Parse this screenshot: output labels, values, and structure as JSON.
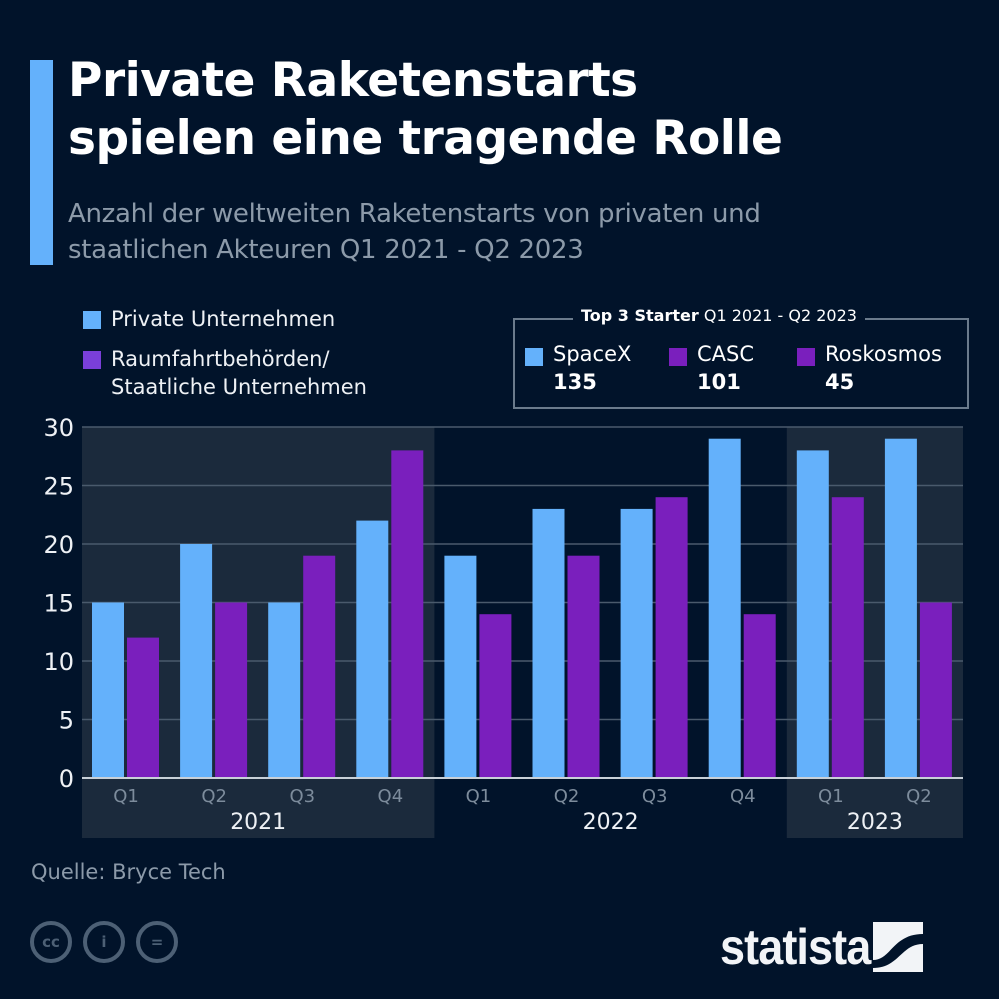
{
  "header": {
    "title_line1": "Private Raketenstarts",
    "title_line2": "spielen eine tragende Rolle",
    "subtitle_line1": "Anzahl der weltweiten Raketenstarts von privaten und",
    "subtitle_line2": "staatlichen Akteuren Q1 2021 - Q2 2023"
  },
  "legend": {
    "items": [
      {
        "label_line1": "Private Unternehmen",
        "label_line2": "",
        "color": "#64b1fb"
      },
      {
        "label_line1": "Raumfahrtbehörden/",
        "label_line2": "Staatliche Unternehmen",
        "color": "#7a1fbd"
      }
    ]
  },
  "top3": {
    "title_bold": "Top 3 Starter",
    "title_rest": "Q1 2021 - Q2 2023",
    "items": [
      {
        "name": "SpaceX",
        "value": "135",
        "color": "#64b1fb"
      },
      {
        "name": "CASC",
        "value": "101",
        "color": "#7a1fbd"
      },
      {
        "name": "Roskosmos",
        "value": "45",
        "color": "#7a1fbd"
      }
    ]
  },
  "footer": {
    "source": "Quelle: Bryce Tech",
    "license_icons": [
      "cc-icon",
      "by-icon",
      "nd-icon"
    ],
    "license_glyphs": [
      "cc",
      "i",
      "="
    ],
    "logo": "statista"
  },
  "colors": {
    "background": "#01132a",
    "band": "#1b2a3c",
    "grid": "#4a5a6c",
    "private": "#64b1fb",
    "state": "#7a1fbd",
    "axis_text": "#eef1f5",
    "quarter_text": "#7d8c9c"
  },
  "chart_data": {
    "type": "bar",
    "title": "Private Raketenstarts spielen eine tragende Rolle",
    "subtitle": "Anzahl der weltweiten Raketenstarts von privaten und staatlichen Akteuren Q1 2021 - Q2 2023",
    "categories": [
      "Q1",
      "Q2",
      "Q3",
      "Q4",
      "Q1",
      "Q2",
      "Q3",
      "Q4",
      "Q1",
      "Q2"
    ],
    "groups": [
      {
        "label": "2021",
        "start": 0,
        "count": 4,
        "shaded": true
      },
      {
        "label": "2022",
        "start": 4,
        "count": 4,
        "shaded": false
      },
      {
        "label": "2023",
        "start": 8,
        "count": 2,
        "shaded": true
      }
    ],
    "series": [
      {
        "name": "Private Unternehmen",
        "color": "#64b1fb",
        "values": [
          15,
          20,
          15,
          22,
          19,
          23,
          23,
          29,
          28,
          29
        ]
      },
      {
        "name": "Raumfahrtbehörden/Staatliche Unternehmen",
        "color": "#7a1fbd",
        "values": [
          12,
          15,
          19,
          28,
          14,
          19,
          24,
          14,
          24,
          15
        ]
      }
    ],
    "xlabel": "",
    "ylabel": "",
    "ylim": [
      0,
      30
    ],
    "yticks": [
      0,
      5,
      10,
      15,
      20,
      25,
      30
    ],
    "grid": true,
    "legend_position": "top-left"
  }
}
